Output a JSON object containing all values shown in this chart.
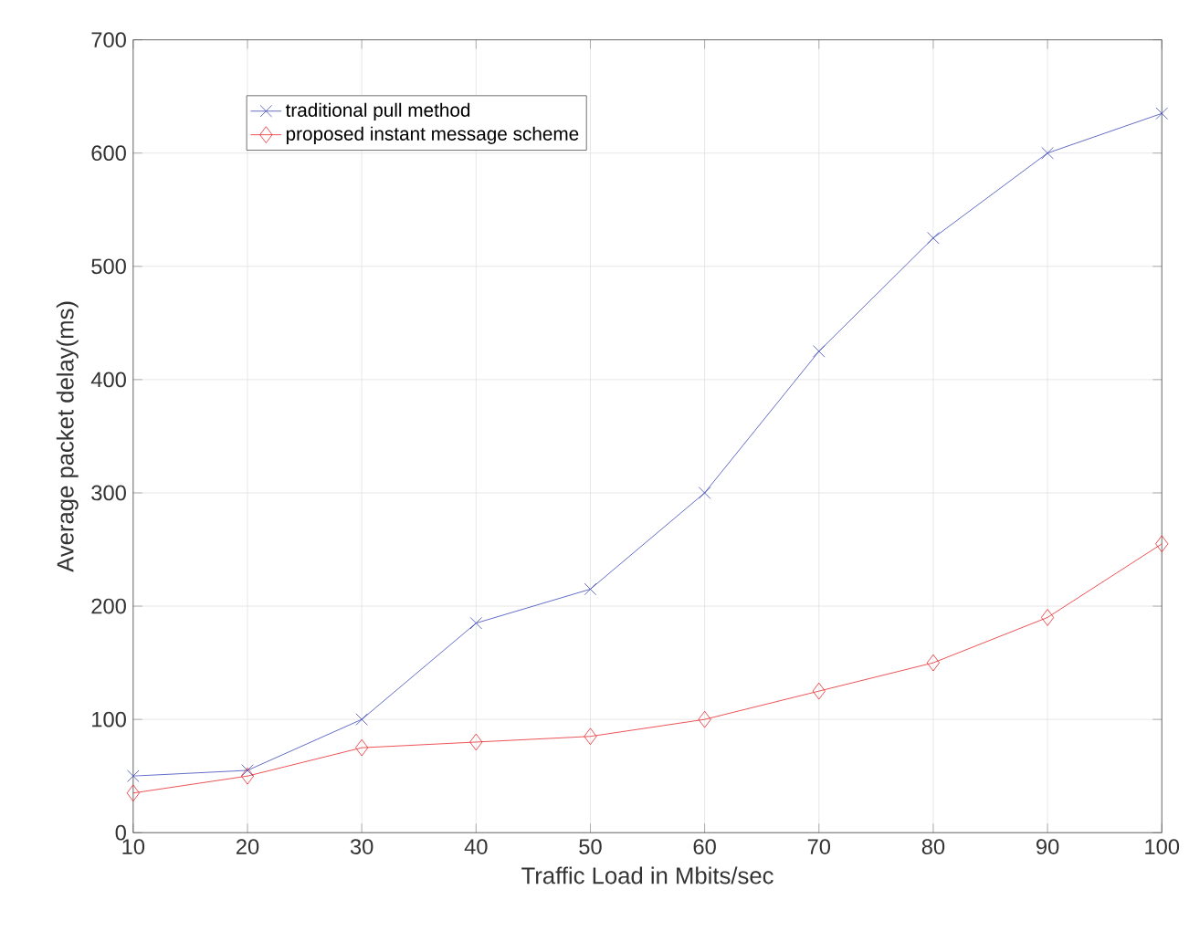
{
  "chart_data": {
    "type": "line",
    "xlabel": "Traffic Load in Mbits/sec",
    "ylabel": "Average packet delay(ms)",
    "x": [
      10,
      20,
      30,
      40,
      50,
      60,
      70,
      80,
      90,
      100
    ],
    "series": [
      {
        "name": "traditional pull method",
        "color": "#3a47b8",
        "marker": "cross",
        "values": [
          50,
          55,
          100,
          185,
          215,
          300,
          425,
          525,
          600,
          635
        ]
      },
      {
        "name": "proposed instant message scheme",
        "color": "#e8262b",
        "marker": "diamond",
        "values": [
          35,
          50,
          75,
          80,
          85,
          100,
          125,
          150,
          190,
          255
        ]
      }
    ],
    "xlim": [
      10,
      100
    ],
    "xticks": [
      10,
      20,
      30,
      40,
      50,
      60,
      70,
      80,
      90,
      100
    ],
    "ylim": [
      0,
      700
    ],
    "yticks": [
      0,
      100,
      200,
      300,
      400,
      500,
      600,
      700
    ],
    "grid": true,
    "legend": "top left",
    "line_style": "solid"
  }
}
